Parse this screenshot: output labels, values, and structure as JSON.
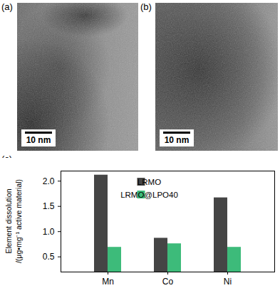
{
  "panels": [
    {
      "label": "(a)",
      "scale_bar": "10 nm"
    },
    {
      "label": "(b)",
      "scale_bar": "10 nm"
    },
    {
      "label": "(c)"
    }
  ],
  "chart_data": {
    "type": "bar",
    "ylabel": "Element dissolution\n/(μg•mg⁻¹ active material)",
    "categories": [
      "Mn",
      "Co",
      "Ni"
    ],
    "series": [
      {
        "name": "LRMO",
        "color": "#454545",
        "values": [
          2.12,
          0.87,
          1.67
        ]
      },
      {
        "name": "LRMO@LPO40",
        "color": "#3dbb7a",
        "values": [
          0.69,
          0.76,
          0.69
        ]
      }
    ],
    "ylim": [
      0.2,
      2.2
    ],
    "yticks": [
      0.5,
      {
        "value": 1,
        "label": "1.0"
      },
      1.5,
      {
        "value": 2,
        "label": "2.0"
      }
    ],
    "legend": "upper right",
    "grid": false
  }
}
